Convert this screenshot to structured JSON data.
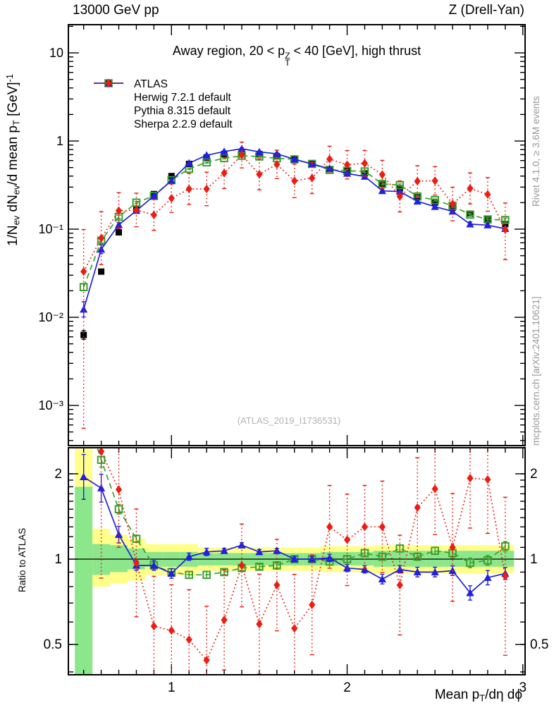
{
  "header": {
    "left": "13000 GeV pp",
    "right": "Z (Drell-Yan)"
  },
  "annotations": {
    "watermark": "(ATLAS_2019_I1736531)",
    "rivet_text": "Rivet 4.1.0, ≥ 3.6M events",
    "mcplots_text": "mcplots.cern.ch [arXiv:2401.10621]",
    "ratio_ylabel": "Ratio to ATLAS"
  },
  "chart_data": {
    "type": "line",
    "title": "Away region, 20 < pTZ < 40 [GeV], high thrust",
    "title_segments": [
      {
        "t": "Away region, 20 < p"
      },
      {
        "stack": {
          "sup": "Z",
          "sub": "T"
        }
      },
      {
        "t": " < 40 [GeV], high thrust"
      }
    ],
    "xlabel": "Mean pT/dη dϕ",
    "xlabel_segments": [
      {
        "t": "Mean p"
      },
      {
        "sub": "T"
      },
      {
        "t": "/dη dϕ"
      }
    ],
    "ylabel": "1/Nev dNev/d mean pT [GeV]^-1",
    "ylabel_segments": [
      {
        "t": "1/N"
      },
      {
        "sub": "ev"
      },
      {
        "t": " dN"
      },
      {
        "sub": "ev"
      },
      {
        "t": "/d mean p"
      },
      {
        "sub": "T"
      },
      {
        "t": " [GeV]"
      },
      {
        "sup": "-1"
      }
    ],
    "axes": {
      "x": {
        "min": 0.413,
        "max": 3.013,
        "major_ticks": [
          1,
          2,
          3
        ],
        "minor_step": 0.1,
        "scale": "linear"
      },
      "main_y": {
        "min": 0.00035,
        "max": 20,
        "scale": "log",
        "tick_labels": [
          {
            "v": 10,
            "label": "10"
          },
          {
            "v": 1,
            "label": "1"
          },
          {
            "v": 0.1,
            "label": "10⁻¹"
          },
          {
            "v": 0.01,
            "label": "10⁻²"
          },
          {
            "v": 0.001,
            "label": "10⁻³"
          }
        ]
      },
      "ratio_y": {
        "min": 0.38,
        "max": 2.47,
        "scale": "log",
        "tick_labels": [
          {
            "v": 2,
            "label": "2"
          },
          {
            "v": 1,
            "label": "1"
          },
          {
            "v": 0.5,
            "label": "0.5"
          }
        ],
        "minor_ticks": [
          0.4,
          0.5,
          0.6,
          0.7,
          0.8,
          0.9,
          1.1,
          1.2,
          1.3,
          1.4,
          1.5,
          1.6,
          1.7,
          1.8,
          1.9,
          2.0
        ]
      }
    },
    "x": [
      0.5,
      0.6,
      0.7,
      0.8,
      0.9,
      1.0,
      1.1,
      1.2,
      1.3,
      1.4,
      1.5,
      1.6,
      1.7,
      1.8,
      1.9,
      2.0,
      2.1,
      2.2,
      2.3,
      2.4,
      2.5,
      2.6,
      2.7,
      2.8,
      2.9
    ],
    "series": [
      {
        "id": "atlas",
        "name": "ATLAS",
        "color": "#000000",
        "marker": "square",
        "line": "none",
        "y": [
          0.0063,
          0.033,
          0.092,
          0.17,
          0.25,
          0.4,
          0.55,
          0.65,
          0.71,
          0.73,
          0.71,
          0.67,
          0.62,
          0.55,
          0.48,
          0.46,
          0.43,
          0.32,
          0.29,
          0.23,
          0.2,
          0.175,
          0.15,
          0.13,
          0.114
        ],
        "err_factor": [
          1.12,
          1.06,
          1.04,
          1.03,
          1.03,
          1.03,
          1.02,
          1.02,
          1.02,
          1.02,
          1.02,
          1.02,
          1.02,
          1.02,
          1.03,
          1.03,
          1.03,
          1.03,
          1.03,
          1.03,
          1.03,
          1.04,
          1.04,
          1.04,
          1.04
        ],
        "ratio": null
      },
      {
        "id": "herwig",
        "name": "Herwig 7.2.1 default",
        "color": "#3ca02c",
        "marker": "osquare",
        "line": "dashed",
        "y": [
          0.022,
          0.074,
          0.138,
          0.2,
          0.238,
          0.36,
          0.484,
          0.572,
          0.639,
          0.679,
          0.667,
          0.637,
          0.62,
          0.55,
          0.47,
          0.46,
          0.452,
          0.326,
          0.316,
          0.235,
          0.214,
          0.184,
          0.146,
          0.129,
          0.127
        ],
        "err_factor": [
          1.1,
          1.06,
          1.04,
          1.03,
          1.03,
          1.03,
          1.02,
          1.02,
          1.02,
          1.02,
          1.02,
          1.02,
          1.02,
          1.02,
          1.03,
          1.03,
          1.03,
          1.03,
          1.03,
          1.03,
          1.03,
          1.04,
          1.04,
          1.05,
          1.05
        ],
        "ratio": [
          3.5,
          2.24,
          1.5,
          1.18,
          0.95,
          0.9,
          0.88,
          0.88,
          0.9,
          0.93,
          0.94,
          0.95,
          1.0,
          1.0,
          0.98,
          1.0,
          1.05,
          1.02,
          1.09,
          1.02,
          1.07,
          1.05,
          0.97,
          0.99,
          1.11
        ],
        "ratio_err_factor": [
          1.06,
          1.06,
          1.04,
          1.03,
          1.03,
          1.03,
          1.03,
          1.03,
          1.02,
          1.02,
          1.02,
          1.02,
          1.02,
          1.02,
          1.03,
          1.03,
          1.03,
          1.03,
          1.03,
          1.03,
          1.03,
          1.04,
          1.04,
          1.04,
          1.04
        ]
      },
      {
        "id": "pythia",
        "name": "Pythia 8.315 default",
        "color": "#2020dd",
        "marker": "triangle",
        "line": "solid",
        "y": [
          0.0123,
          0.059,
          0.112,
          0.162,
          0.238,
          0.356,
          0.561,
          0.689,
          0.76,
          0.818,
          0.753,
          0.717,
          0.62,
          0.55,
          0.485,
          0.428,
          0.396,
          0.272,
          0.267,
          0.207,
          0.18,
          0.159,
          0.114,
          0.111,
          0.101
        ],
        "err_factor": [
          1.22,
          1.12,
          1.06,
          1.04,
          1.03,
          1.03,
          1.02,
          1.02,
          1.02,
          1.02,
          1.02,
          1.02,
          1.02,
          1.02,
          1.03,
          1.03,
          1.03,
          1.04,
          1.03,
          1.04,
          1.04,
          1.04,
          1.06,
          1.05,
          1.05
        ],
        "ratio": [
          1.95,
          1.78,
          1.22,
          0.95,
          0.95,
          0.89,
          1.02,
          1.06,
          1.07,
          1.12,
          1.06,
          1.07,
          1.0,
          1.0,
          1.01,
          0.93,
          0.92,
          0.85,
          0.92,
          0.9,
          0.9,
          0.91,
          0.76,
          0.86,
          0.89
        ],
        "ratio_err_factor": [
          1.2,
          1.12,
          1.07,
          1.04,
          1.04,
          1.04,
          1.03,
          1.03,
          1.02,
          1.02,
          1.02,
          1.02,
          1.02,
          1.02,
          1.03,
          1.03,
          1.03,
          1.04,
          1.03,
          1.04,
          1.04,
          1.04,
          1.06,
          1.06,
          1.05
        ]
      },
      {
        "id": "sherpa",
        "name": "Sherpa 2.2.9 default",
        "color": "#ee1c12",
        "marker": "diamond",
        "line": "dotted",
        "y": [
          0.033,
          0.079,
          0.162,
          0.165,
          0.145,
          0.224,
          0.286,
          0.286,
          0.433,
          0.694,
          0.419,
          0.543,
          0.353,
          0.38,
          0.624,
          0.538,
          0.559,
          0.416,
          0.235,
          0.35,
          0.354,
          0.193,
          0.29,
          0.248,
          0.099
        ],
        "err_factor_hi": [
          3.0,
          2.0,
          1.6,
          1.55,
          1.5,
          1.45,
          1.5,
          1.55,
          1.5,
          1.4,
          1.5,
          1.45,
          1.55,
          1.5,
          1.4,
          1.45,
          1.4,
          1.45,
          1.5,
          1.5,
          1.45,
          1.55,
          1.5,
          1.55,
          2.0
        ],
        "err_factor_lo": [
          60,
          2.0,
          1.6,
          1.55,
          1.5,
          1.45,
          1.5,
          1.55,
          1.5,
          1.4,
          1.5,
          1.45,
          1.55,
          1.5,
          1.4,
          1.45,
          1.4,
          1.45,
          1.5,
          1.5,
          1.45,
          1.55,
          1.5,
          1.55,
          2.2
        ],
        "ratio": [
          5.2,
          2.4,
          1.76,
          0.97,
          0.58,
          0.56,
          0.52,
          0.44,
          0.61,
          0.95,
          0.59,
          0.81,
          0.57,
          0.69,
          1.3,
          1.17,
          1.3,
          1.3,
          0.81,
          1.52,
          1.77,
          1.1,
          1.93,
          1.91,
          0.87
        ],
        "ratio_err_factor": [
          1.5,
          2.8,
          1.6,
          1.55,
          1.5,
          1.45,
          1.5,
          1.55,
          1.5,
          1.4,
          1.5,
          1.45,
          1.55,
          1.5,
          1.4,
          1.45,
          1.4,
          1.45,
          1.5,
          1.5,
          1.45,
          1.55,
          1.5,
          1.55,
          1.9
        ]
      }
    ],
    "ratio_bands": {
      "bin_half_width": 0.05,
      "yellow_color": "#ffff8a",
      "green_color": "#8ce68c",
      "yellow_lo": [
        0.3,
        0.8,
        0.82,
        0.84,
        0.88,
        0.88,
        0.88,
        0.91,
        0.91,
        0.91,
        0.91,
        0.91,
        0.91,
        0.91,
        0.9,
        0.9,
        0.9,
        0.89,
        0.89,
        0.89,
        0.89,
        0.89,
        0.89,
        0.89,
        0.89
      ],
      "yellow_hi": [
        2.45,
        1.28,
        1.22,
        1.18,
        1.13,
        1.13,
        1.13,
        1.1,
        1.1,
        1.1,
        1.1,
        1.1,
        1.1,
        1.1,
        1.11,
        1.11,
        1.11,
        1.12,
        1.12,
        1.12,
        1.12,
        1.12,
        1.12,
        1.12,
        1.12
      ],
      "green_lo": [
        0.36,
        0.88,
        0.9,
        0.92,
        0.94,
        0.94,
        0.94,
        0.95,
        0.95,
        0.95,
        0.95,
        0.95,
        0.95,
        0.95,
        0.95,
        0.95,
        0.95,
        0.94,
        0.94,
        0.94,
        0.94,
        0.94,
        0.94,
        0.94,
        0.94
      ],
      "green_hi": [
        1.8,
        1.13,
        1.12,
        1.09,
        1.06,
        1.06,
        1.06,
        1.05,
        1.05,
        1.05,
        1.05,
        1.05,
        1.05,
        1.05,
        1.06,
        1.06,
        1.06,
        1.07,
        1.07,
        1.07,
        1.07,
        1.07,
        1.07,
        1.07,
        1.07
      ]
    },
    "ratio_reference": 1
  }
}
